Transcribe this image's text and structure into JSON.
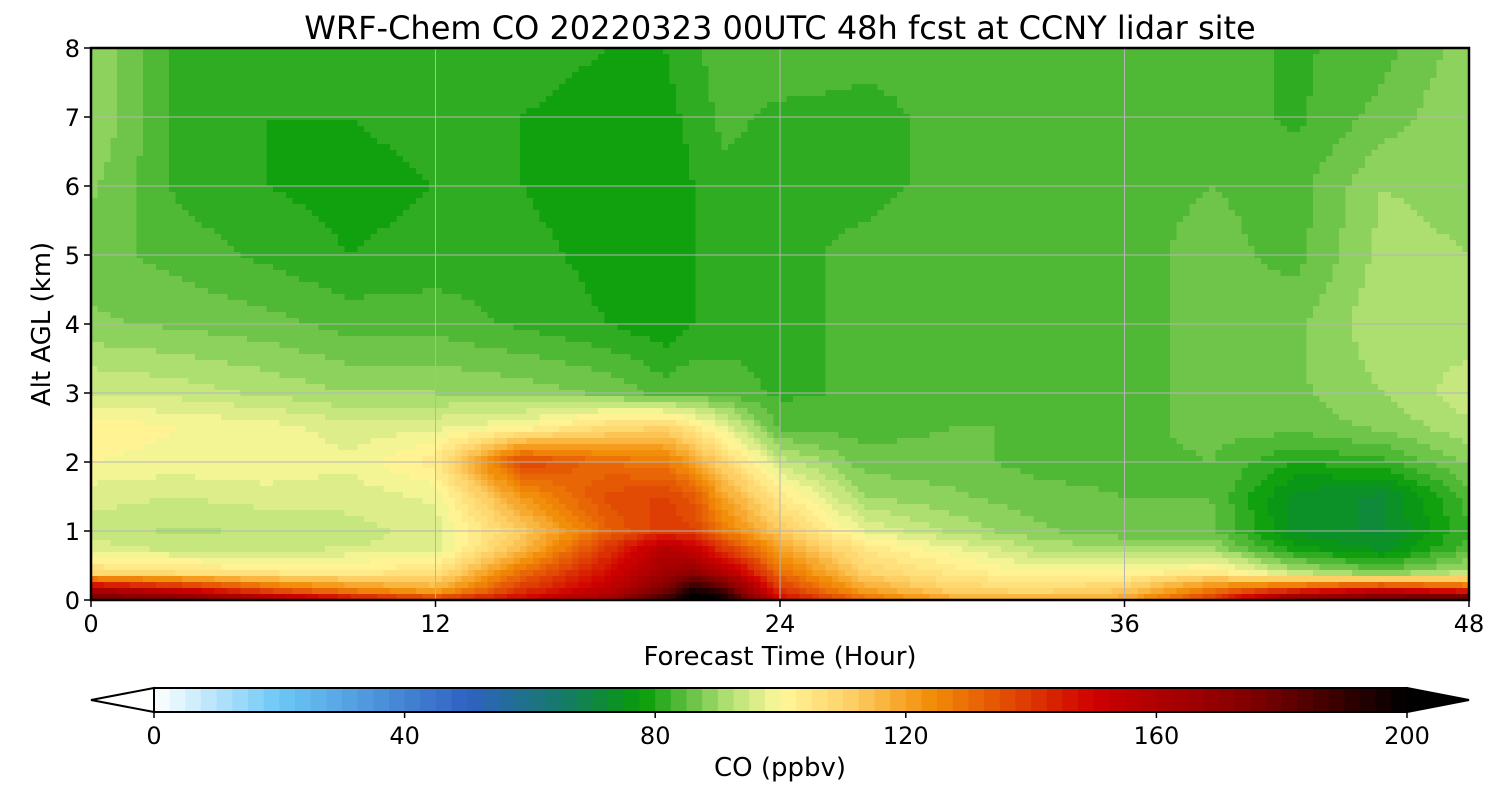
{
  "chart_data": {
    "type": "heatmap",
    "title": "WRF-Chem CO  20220323 00UTC 48h fcst at CCNY lidar site",
    "xlabel": "Forecast Time (Hour)",
    "ylabel": "Alt AGL (km)",
    "xlim": [
      0,
      48
    ],
    "ylim": [
      0,
      8
    ],
    "x_ticks": [
      "0",
      "12",
      "24",
      "36",
      "48"
    ],
    "y_ticks": [
      "0",
      "1",
      "2",
      "3",
      "4",
      "5",
      "6",
      "7",
      "8"
    ],
    "grid": true,
    "x": [
      0,
      3,
      6,
      9,
      12,
      15,
      18,
      20,
      21,
      22,
      24,
      27,
      30,
      33,
      36,
      39,
      42,
      45,
      48
    ],
    "y": [
      0,
      0.15,
      0.4,
      0.75,
      1.0,
      1.5,
      2.0,
      2.5,
      3.0,
      4.0,
      5.0,
      6.0,
      7.0,
      8.0
    ],
    "values": [
      [
        180,
        178,
        165,
        150,
        140,
        150,
        165,
        190,
        205,
        200,
        150,
        130,
        120,
        118,
        120,
        140,
        175,
        185,
        190
      ],
      [
        160,
        150,
        135,
        125,
        118,
        140,
        155,
        175,
        195,
        185,
        140,
        120,
        110,
        108,
        112,
        128,
        140,
        150,
        140
      ],
      [
        108,
        106,
        104,
        104,
        105,
        130,
        148,
        165,
        170,
        160,
        130,
        110,
        104,
        100,
        100,
        104,
        92,
        86,
        92
      ],
      [
        96,
        94,
        94,
        95,
        96,
        115,
        140,
        158,
        152,
        140,
        120,
        104,
        98,
        92,
        90,
        90,
        78,
        74,
        84
      ],
      [
        94,
        92,
        93,
        94,
        96,
        112,
        132,
        140,
        138,
        128,
        112,
        97,
        92,
        88,
        86,
        86,
        74,
        72,
        82
      ],
      [
        96,
        95,
        96,
        96,
        98,
        122,
        136,
        138,
        134,
        120,
        104,
        90,
        88,
        86,
        85,
        85,
        74,
        72,
        84
      ],
      [
        100,
        99,
        100,
        98,
        104,
        138,
        130,
        128,
        120,
        110,
        94,
        86,
        86,
        84,
        84,
        85,
        80,
        82,
        88
      ],
      [
        102,
        100,
        99,
        96,
        97,
        100,
        108,
        110,
        104,
        98,
        84,
        84,
        85,
        85,
        84,
        86,
        86,
        88,
        92
      ],
      [
        95,
        94,
        92,
        90,
        90,
        89,
        87,
        84,
        85,
        84,
        82,
        83,
        84,
        84,
        84,
        86,
        87,
        90,
        94
      ],
      [
        88,
        87,
        86,
        84,
        84,
        82,
        80,
        78,
        80,
        81,
        82,
        83,
        84,
        85,
        84,
        86,
        87,
        92,
        91
      ],
      [
        86,
        84,
        82,
        80,
        81,
        81,
        79,
        78,
        80,
        81,
        82,
        83,
        84,
        84,
        84,
        86,
        84,
        91,
        90
      ],
      [
        88,
        82,
        80,
        79,
        80,
        80,
        78,
        78,
        80,
        82,
        82,
        82,
        83,
        83,
        84,
        85,
        84,
        90,
        89
      ],
      [
        90,
        82,
        80,
        80,
        81,
        80,
        78,
        79,
        81,
        83,
        82,
        82,
        83,
        83,
        83,
        84,
        82,
        86,
        90
      ],
      [
        90,
        82,
        80,
        80,
        82,
        82,
        80,
        80,
        82,
        84,
        84,
        83,
        83,
        83,
        83,
        84,
        82,
        84,
        89
      ]
    ],
    "colorbar": {
      "label": "CO  (ppbv)",
      "min": 0,
      "max": 200,
      "extend": "both",
      "ticks": [
        "0",
        "40",
        "80",
        "120",
        "160",
        "200"
      ],
      "stops": [
        {
          "v": 0,
          "c": "#ffffff"
        },
        {
          "v": 20,
          "c": "#6cc8f6"
        },
        {
          "v": 50,
          "c": "#2f62c2"
        },
        {
          "v": 65,
          "c": "#157a6a"
        },
        {
          "v": 78,
          "c": "#089c08"
        },
        {
          "v": 92,
          "c": "#b5e276"
        },
        {
          "v": 100,
          "c": "#fff79a"
        },
        {
          "v": 112,
          "c": "#fdcc60"
        },
        {
          "v": 124,
          "c": "#f28e08"
        },
        {
          "v": 150,
          "c": "#cf0000"
        },
        {
          "v": 175,
          "c": "#800000"
        },
        {
          "v": 200,
          "c": "#000000"
        }
      ]
    }
  }
}
